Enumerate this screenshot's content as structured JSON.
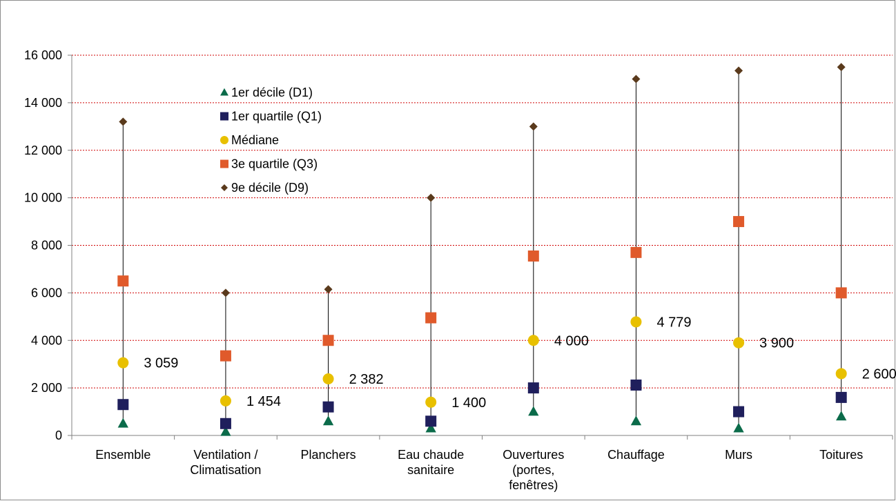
{
  "chart_data": {
    "type": "scatter",
    "title": "",
    "xlabel": "",
    "ylabel": "",
    "ylim": [
      0,
      16000
    ],
    "yticks": [
      0,
      2000,
      4000,
      6000,
      8000,
      10000,
      12000,
      14000,
      16000
    ],
    "ytick_labels": [
      "0",
      "2 000",
      "4 000",
      "6 000",
      "8 000",
      "10 000",
      "12 000",
      "14 000",
      "16 000"
    ],
    "grid": "horizontal dotted red",
    "legend_position": "top-left",
    "categories": [
      [
        "Ensemble"
      ],
      [
        "Ventilation /",
        "Climatisation"
      ],
      [
        "Planchers"
      ],
      [
        "Eau chaude",
        "sanitaire"
      ],
      [
        "Ouvertures",
        "(portes,",
        "fenêtres)"
      ],
      [
        "Chauffage"
      ],
      [
        "Murs"
      ],
      [
        "Toitures"
      ]
    ],
    "series": [
      {
        "name": "1er décile (D1)",
        "marker": "triangle",
        "color": "#0b6b4a",
        "values": [
          500,
          150,
          600,
          300,
          1000,
          600,
          300,
          800
        ]
      },
      {
        "name": "1er quartile (Q1)",
        "marker": "square",
        "color": "#1f1f5c",
        "values": [
          1300,
          500,
          1200,
          600,
          2000,
          2120,
          1000,
          1600
        ]
      },
      {
        "name": "Médiane",
        "marker": "circle",
        "color": "#e8c000",
        "values": [
          3059,
          1454,
          2382,
          1400,
          4000,
          4779,
          3900,
          2600
        ]
      },
      {
        "name": "3e quartile (Q3)",
        "marker": "square",
        "color": "#e05a2b",
        "values": [
          6500,
          3350,
          4000,
          4950,
          7550,
          7700,
          9000,
          6000
        ]
      },
      {
        "name": "9e décile (D9)",
        "marker": "diamond",
        "color": "#5a3a1c",
        "values": [
          13200,
          6000,
          6150,
          10000,
          13000,
          15000,
          15350,
          15500
        ]
      }
    ],
    "median_labels": [
      "3 059",
      "1 454",
      "2 382",
      "1 400",
      "4 000",
      "4 779",
      "3 900",
      "2 600"
    ]
  }
}
